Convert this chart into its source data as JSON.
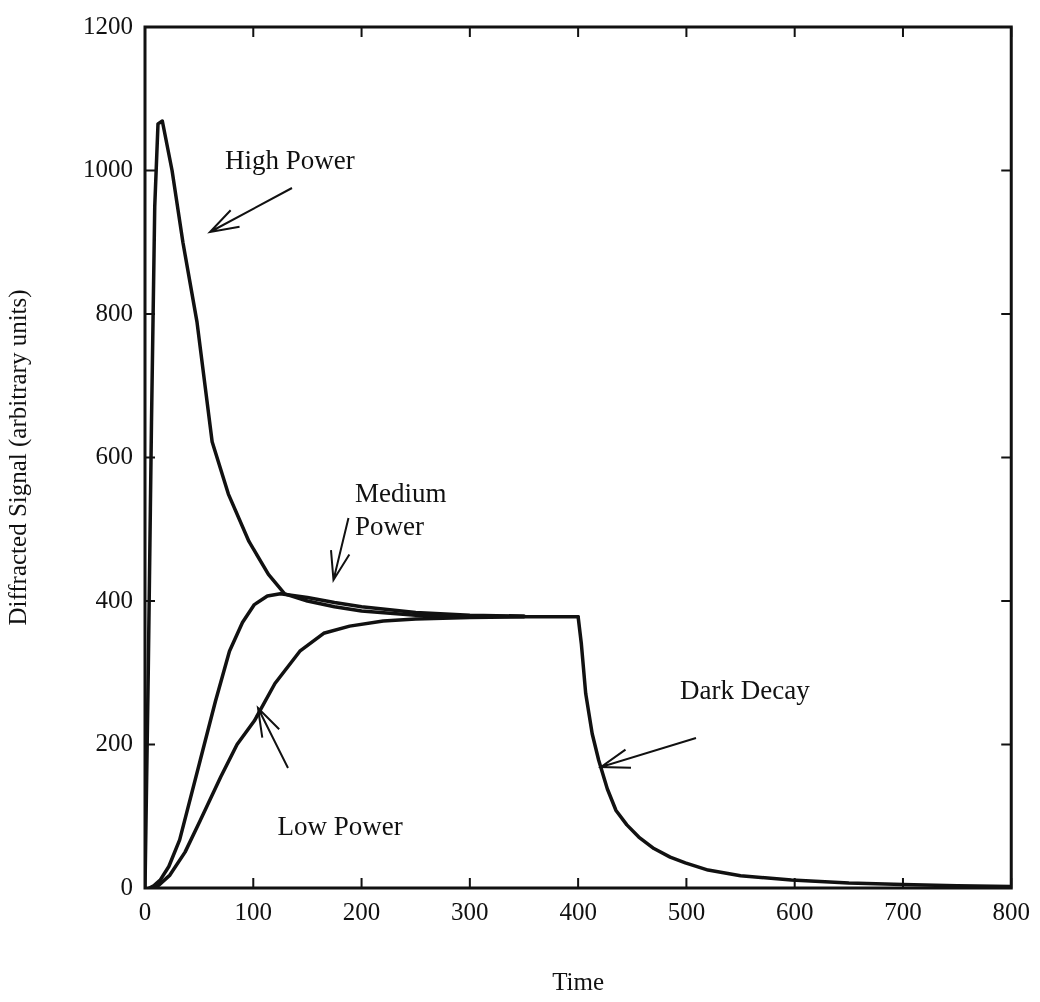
{
  "chart_data": {
    "type": "line",
    "xlabel": "Time",
    "ylabel": "Diffracted Signal (arbitrary units)",
    "xlim": [
      0,
      800
    ],
    "xticks": [
      0,
      100,
      200,
      300,
      400,
      500,
      600,
      700,
      800
    ],
    "ylim": [
      0,
      1200
    ],
    "yticks": [
      0,
      200,
      400,
      600,
      800,
      1000,
      1200
    ],
    "grid": false,
    "legend": false,
    "marker": "none",
    "line_style": "solid",
    "series": [
      {
        "color": "#111111",
        "x": [
          0,
          3,
          6,
          9,
          12,
          16,
          25,
          35,
          48,
          62,
          77,
          96,
          114,
          129,
          150,
          175,
          200,
          250,
          300,
          350
        ],
        "values": [
          0,
          300,
          650,
          950,
          1065,
          1069,
          1000,
          900,
          789,
          622,
          549,
          483,
          437,
          410,
          400,
          392,
          386,
          380,
          379,
          378
        ]
      },
      {
        "color": "#111111",
        "x": [
          4,
          8,
          14,
          22,
          32,
          51,
          65,
          78,
          90,
          101,
          113,
          125,
          150,
          175,
          200,
          250,
          300,
          350
        ],
        "values": [
          0,
          3,
          11,
          30,
          67,
          178,
          260,
          330,
          370,
          395,
          407,
          410,
          405,
          398,
          392,
          384,
          380,
          379
        ]
      },
      {
        "color": "#111111",
        "x": [
          8,
          12,
          23,
          37,
          51,
          70,
          85,
          101,
          120,
          143,
          165,
          189,
          220,
          250,
          300,
          350,
          400
        ],
        "values": [
          0,
          3,
          18,
          50,
          94,
          155,
          200,
          233,
          285,
          330,
          355,
          365,
          372,
          375,
          377,
          378,
          378
        ]
      },
      {
        "color": "#111111",
        "x": [
          400,
          403,
          407,
          413,
          419,
          427,
          435,
          445,
          456,
          470,
          485,
          499,
          520,
          550,
          597,
          650,
          700,
          750,
          800
        ],
        "values": [
          378,
          340,
          271,
          215,
          178,
          138,
          108,
          88,
          71,
          55,
          43,
          35,
          25,
          17,
          11,
          7,
          5,
          3,
          2
        ]
      }
    ],
    "annotations": [
      "High Power",
      "Medium Power",
      "Low Power",
      {
        "text": "Dark Decay",
        "x": 421,
        "y": 168
      }
    ]
  }
}
